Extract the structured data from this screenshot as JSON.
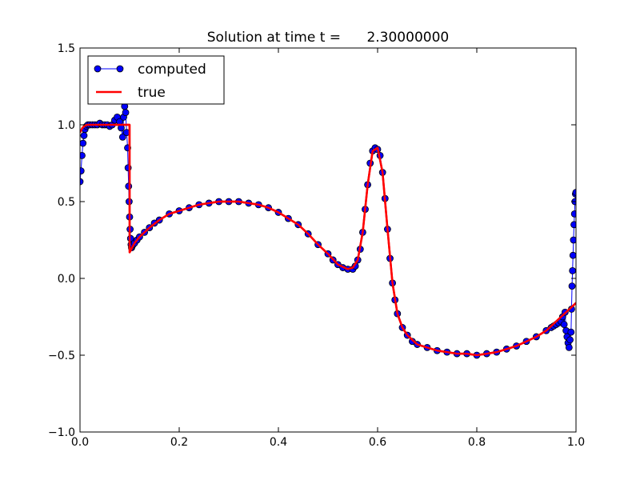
{
  "chart_data": {
    "type": "line",
    "title": "Solution at time t =      2.30000000",
    "xlabel": "",
    "ylabel": "",
    "xlim": [
      0.0,
      1.0
    ],
    "ylim": [
      -1.0,
      1.5
    ],
    "xticks": [
      "0.0",
      "0.2",
      "0.4",
      "0.6",
      "0.8",
      "1.0"
    ],
    "yticks": [
      "−1.0",
      "−0.5",
      "0.0",
      "0.5",
      "1.0",
      "1.5"
    ],
    "grid": false,
    "legend_position": "top-left",
    "series": [
      {
        "name": "computed",
        "style": "line-with-circle-markers",
        "color": "#0000ff",
        "marker_edge": "#000000",
        "x": [
          0.0,
          0.002,
          0.004,
          0.006,
          0.008,
          0.01,
          0.013,
          0.016,
          0.02,
          0.025,
          0.03,
          0.035,
          0.04,
          0.045,
          0.05,
          0.055,
          0.06,
          0.065,
          0.07,
          0.075,
          0.08,
          0.083,
          0.086,
          0.088,
          0.09,
          0.092,
          0.094,
          0.096,
          0.097,
          0.098,
          0.099,
          0.1,
          0.101,
          0.102,
          0.103,
          0.104,
          0.105,
          0.107,
          0.11,
          0.115,
          0.12,
          0.13,
          0.14,
          0.15,
          0.16,
          0.18,
          0.2,
          0.22,
          0.24,
          0.26,
          0.28,
          0.3,
          0.32,
          0.34,
          0.36,
          0.38,
          0.4,
          0.42,
          0.44,
          0.46,
          0.48,
          0.5,
          0.51,
          0.52,
          0.53,
          0.54,
          0.55,
          0.555,
          0.56,
          0.565,
          0.57,
          0.575,
          0.58,
          0.585,
          0.59,
          0.595,
          0.6,
          0.605,
          0.61,
          0.615,
          0.62,
          0.625,
          0.63,
          0.635,
          0.64,
          0.65,
          0.66,
          0.67,
          0.68,
          0.7,
          0.72,
          0.74,
          0.76,
          0.78,
          0.8,
          0.82,
          0.84,
          0.86,
          0.88,
          0.9,
          0.92,
          0.94,
          0.95,
          0.955,
          0.96,
          0.965,
          0.97,
          0.973,
          0.976,
          0.978,
          0.98,
          0.982,
          0.984,
          0.986,
          0.988,
          0.99,
          0.991,
          0.992,
          0.993,
          0.994,
          0.995,
          0.996,
          0.997,
          0.998,
          0.999,
          1.0
        ],
        "y": [
          0.63,
          0.7,
          0.8,
          0.88,
          0.93,
          0.97,
          0.99,
          1.0,
          1.0,
          1.0,
          1.0,
          1.0,
          1.01,
          1.0,
          1.0,
          1.0,
          0.99,
          1.0,
          1.03,
          1.05,
          1.02,
          0.98,
          0.92,
          1.05,
          1.12,
          1.08,
          0.95,
          0.85,
          0.72,
          0.6,
          0.5,
          0.4,
          0.32,
          0.26,
          0.22,
          0.2,
          0.21,
          0.22,
          0.23,
          0.25,
          0.27,
          0.3,
          0.33,
          0.36,
          0.38,
          0.42,
          0.44,
          0.46,
          0.48,
          0.49,
          0.5,
          0.5,
          0.5,
          0.49,
          0.48,
          0.46,
          0.43,
          0.39,
          0.35,
          0.29,
          0.22,
          0.16,
          0.12,
          0.09,
          0.07,
          0.06,
          0.06,
          0.08,
          0.12,
          0.19,
          0.3,
          0.45,
          0.61,
          0.75,
          0.83,
          0.85,
          0.84,
          0.8,
          0.69,
          0.52,
          0.32,
          0.13,
          -0.03,
          -0.14,
          -0.23,
          -0.32,
          -0.37,
          -0.41,
          -0.43,
          -0.45,
          -0.47,
          -0.48,
          -0.49,
          -0.49,
          -0.5,
          -0.49,
          -0.48,
          -0.46,
          -0.44,
          -0.41,
          -0.38,
          -0.34,
          -0.32,
          -0.31,
          -0.3,
          -0.29,
          -0.28,
          -0.25,
          -0.3,
          -0.22,
          -0.34,
          -0.38,
          -0.42,
          -0.45,
          -0.4,
          -0.35,
          -0.2,
          -0.05,
          0.05,
          0.15,
          0.25,
          0.35,
          0.42,
          0.5,
          0.55,
          0.56
        ]
      },
      {
        "name": "true",
        "style": "line",
        "color": "#ff0000",
        "x": [
          0.0,
          0.005,
          0.01,
          0.015,
          0.02,
          0.03,
          0.04,
          0.05,
          0.06,
          0.07,
          0.08,
          0.09,
          0.0999,
          0.1001,
          0.11,
          0.12,
          0.14,
          0.16,
          0.18,
          0.2,
          0.22,
          0.24,
          0.26,
          0.28,
          0.3,
          0.32,
          0.34,
          0.36,
          0.38,
          0.4,
          0.42,
          0.44,
          0.46,
          0.48,
          0.5,
          0.52,
          0.54,
          0.55,
          0.56,
          0.57,
          0.58,
          0.59,
          0.6,
          0.61,
          0.62,
          0.63,
          0.64,
          0.65,
          0.66,
          0.68,
          0.7,
          0.72,
          0.74,
          0.76,
          0.78,
          0.8,
          0.82,
          0.84,
          0.86,
          0.88,
          0.9,
          0.92,
          0.94,
          0.96,
          0.98,
          1.0
        ],
        "y": [
          0.95,
          0.98,
          0.995,
          1.0,
          1.0,
          1.0,
          1.0,
          1.0,
          1.0,
          1.0,
          1.0,
          1.0,
          1.0,
          0.17,
          0.23,
          0.27,
          0.33,
          0.38,
          0.42,
          0.44,
          0.46,
          0.48,
          0.49,
          0.5,
          0.5,
          0.5,
          0.49,
          0.48,
          0.46,
          0.43,
          0.39,
          0.35,
          0.29,
          0.22,
          0.16,
          0.09,
          0.06,
          0.07,
          0.12,
          0.3,
          0.61,
          0.83,
          0.85,
          0.69,
          0.32,
          -0.03,
          -0.23,
          -0.32,
          -0.37,
          -0.43,
          -0.45,
          -0.47,
          -0.48,
          -0.49,
          -0.49,
          -0.5,
          -0.49,
          -0.48,
          -0.46,
          -0.44,
          -0.41,
          -0.38,
          -0.34,
          -0.28,
          -0.22,
          -0.16
        ]
      }
    ]
  }
}
